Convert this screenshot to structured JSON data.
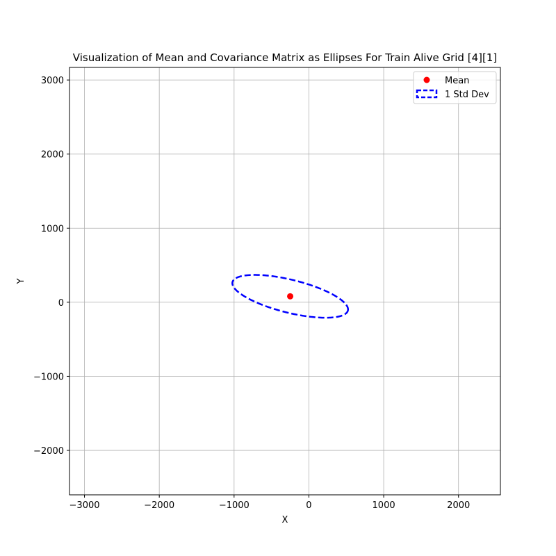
{
  "chart_data": {
    "type": "scatter",
    "title": "Visualization of Mean and Covariance Matrix as Ellipses For Train Alive Grid [4][1]",
    "xlabel": "X",
    "ylabel": "Y",
    "xlim": [
      -3200,
      2560
    ],
    "ylim": [
      -2600,
      3170
    ],
    "xticks": [
      -3000,
      -2000,
      -1000,
      0,
      1000,
      2000
    ],
    "yticks": [
      -2000,
      -1000,
      0,
      1000,
      2000,
      3000
    ],
    "grid": true,
    "legend_position": "top-right",
    "mean": {
      "name": "Mean",
      "x": -250,
      "y": 80,
      "color": "#ff0000"
    },
    "ellipse": {
      "name": "1 Std Dev",
      "center": [
        -250,
        80
      ],
      "width": 1590,
      "height": 445,
      "angle_deg": -14,
      "color": "#0000ff",
      "style": "dashed"
    }
  }
}
